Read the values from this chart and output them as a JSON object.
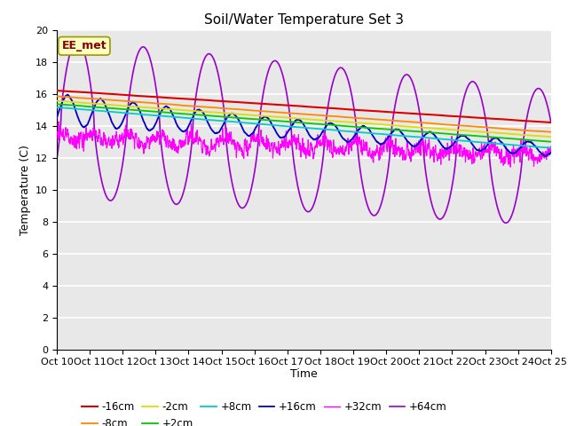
{
  "title": "Soil/Water Temperature Set 3",
  "xlabel": "Time",
  "ylabel": "Temperature (C)",
  "ylim": [
    0,
    20
  ],
  "yticks": [
    0,
    2,
    4,
    6,
    8,
    10,
    12,
    14,
    16,
    18,
    20
  ],
  "bg_color": "#e8e8e8",
  "fig_color": "#ffffff",
  "series_colors": {
    "-16cm": "#dd0000",
    "-8cm": "#ff8800",
    "-2cm": "#dddd00",
    "+2cm": "#00cc00",
    "+8cm": "#00cccc",
    "+16cm": "#0000cc",
    "+32cm": "#ff00ff",
    "+64cm": "#9900cc"
  },
  "xtick_labels": [
    "Oct 10",
    "Oct 11",
    "Oct 12",
    "Oct 13",
    "Oct 14",
    "Oct 15",
    "Oct 16",
    "Oct 17",
    "Oct 18",
    "Oct 19",
    "Oct 20",
    "Oct 21",
    "Oct 22",
    "Oct 23",
    "Oct 24",
    "Oct 25"
  ],
  "annotation_text": "EE_met",
  "annotation_color": "#880000",
  "annotation_bg": "#ffffc0",
  "annotation_edge": "#999900"
}
